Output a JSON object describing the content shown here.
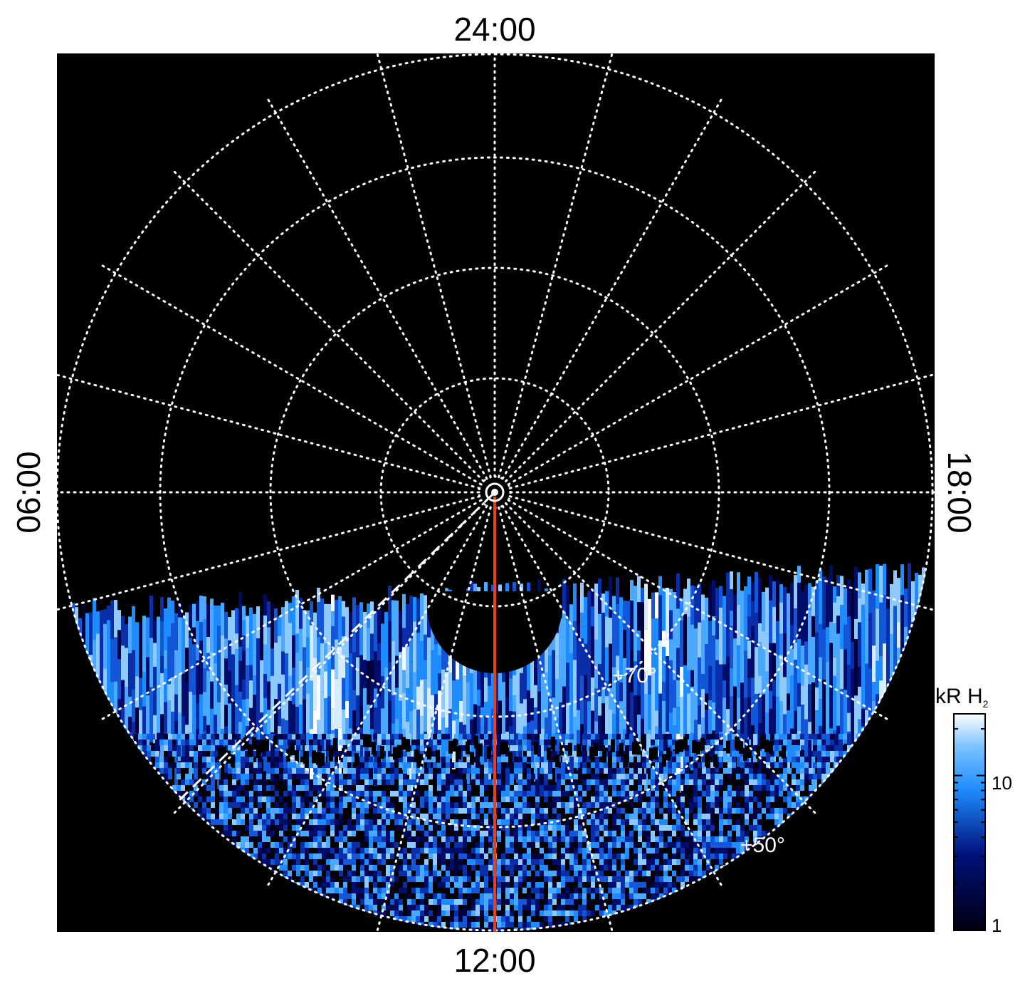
{
  "local_time_labels": {
    "top": "24:00",
    "bottom": "12:00",
    "left": "06:00",
    "right": "18:00"
  },
  "latitude_labels": {
    "inner": "+70°",
    "outer": "+50°"
  },
  "colorbar": {
    "title": "kR H",
    "title_subscript": "2",
    "ticks": [
      "10",
      "1"
    ],
    "scale": "log",
    "range": [
      1,
      25
    ]
  },
  "colors": {
    "background": "#000000",
    "grid": "#ffffff",
    "emission_low": "#00004a",
    "emission_mid": "#1e8cff",
    "emission_high": "#ffffff",
    "meridian_line": "#e8401a"
  },
  "icons": {
    "pole_marker": "pole-circle-icon"
  }
}
